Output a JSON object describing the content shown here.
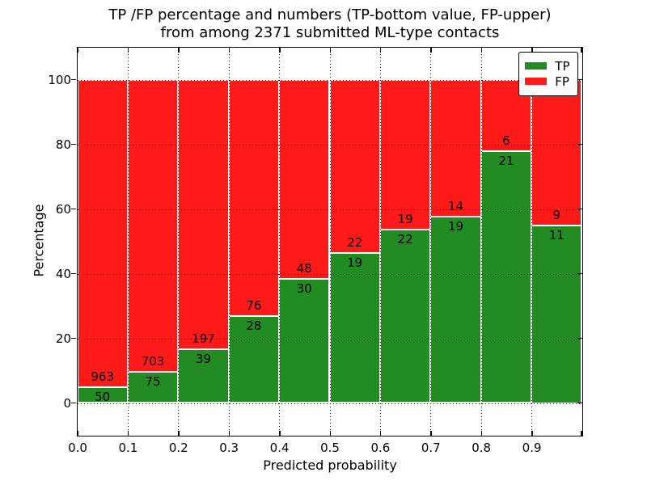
{
  "title": {
    "line1": "TP /FP percentage and numbers (TP-bottom value, FP-upper)",
    "line2": "from among 2371 submitted ML-type contacts"
  },
  "axes": {
    "xlabel": "Predicted probability",
    "ylabel": "Percentage",
    "ytick_values": [
      0,
      20,
      40,
      60,
      80,
      100
    ],
    "ytick_labels": [
      "0",
      "20",
      "40",
      "60",
      "80",
      "100"
    ],
    "xtick_labels": [
      "0.0",
      "0.1",
      "0.2",
      "0.3",
      "0.4",
      "0.5",
      "0.6",
      "0.7",
      "0.8",
      "0.9"
    ],
    "ylim": [
      -10,
      110
    ],
    "xlim": [
      0.0,
      1.0
    ],
    "grid": "dotted black, drawn above bars"
  },
  "legend": {
    "position": "upper right",
    "items": [
      {
        "label": "TP",
        "color": "#228B22"
      },
      {
        "label": "FP",
        "color": "#ff1a1a"
      }
    ]
  },
  "colors": {
    "tp": "#228B22",
    "fp": "#ff1a1a",
    "bar_edge": "#ffffff",
    "frame": "#000000",
    "grid": "#000000",
    "background": "#ffffff"
  },
  "chart_data": {
    "type": "bar",
    "stacked": true,
    "normalized_each_bin_to": 100,
    "title": "TP /FP percentage and numbers (TP-bottom value, FP-upper) from among 2371 submitted ML-type contacts",
    "xlabel": "Predicted probability",
    "ylabel": "Percentage",
    "bin_width": 0.1,
    "categories": [
      "0.0",
      "0.1",
      "0.2",
      "0.3",
      "0.4",
      "0.5",
      "0.6",
      "0.7",
      "0.8",
      "0.9"
    ],
    "series": [
      {
        "name": "TP",
        "color": "#228B22",
        "counts": [
          50,
          75,
          39,
          28,
          30,
          19,
          22,
          19,
          21,
          11
        ]
      },
      {
        "name": "FP",
        "color": "#ff1a1a",
        "counts": [
          963,
          703,
          197,
          76,
          48,
          22,
          19,
          14,
          6,
          9
        ]
      }
    ],
    "tp_percent_of_bin": [
      4.94,
      9.64,
      16.53,
      26.92,
      38.46,
      46.34,
      53.66,
      57.58,
      77.78,
      55.0
    ],
    "total_contacts": 2371,
    "ylim": [
      -10,
      110
    ],
    "legend_position": "upper right",
    "grid": true
  }
}
